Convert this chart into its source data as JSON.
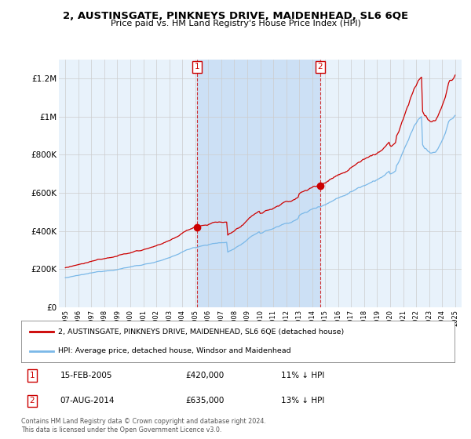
{
  "title": "2, AUSTINSGATE, PINKNEYS DRIVE, MAIDENHEAD, SL6 6QE",
  "subtitle": "Price paid vs. HM Land Registry's House Price Index (HPI)",
  "ylim": [
    0,
    1300000
  ],
  "yticks": [
    0,
    200000,
    400000,
    600000,
    800000,
    1000000,
    1200000
  ],
  "ytick_labels": [
    "£0",
    "£200K",
    "£400K",
    "£600K",
    "£800K",
    "£1M",
    "£1.2M"
  ],
  "sale1_year": 2005.12,
  "sale1_price": 420000,
  "sale1_date": "15-FEB-2005",
  "sale1_pct": "11% ↓ HPI",
  "sale2_year": 2014.6,
  "sale2_price": 635000,
  "sale2_date": "07-AUG-2014",
  "sale2_pct": "13% ↓ HPI",
  "hpi_color": "#7ab8e8",
  "property_color": "#cc0000",
  "legend_property": "2, AUSTINSGATE, PINKNEYS DRIVE, MAIDENHEAD, SL6 6QE (detached house)",
  "legend_hpi": "HPI: Average price, detached house, Windsor and Maidenhead",
  "footnote": "Contains HM Land Registry data © Crown copyright and database right 2024.\nThis data is licensed under the Open Government Licence v3.0.",
  "background_color": "#ffffff",
  "plot_background": "#e8f2fb",
  "highlight_color": "#cce0f5",
  "grid_color": "#cccccc"
}
